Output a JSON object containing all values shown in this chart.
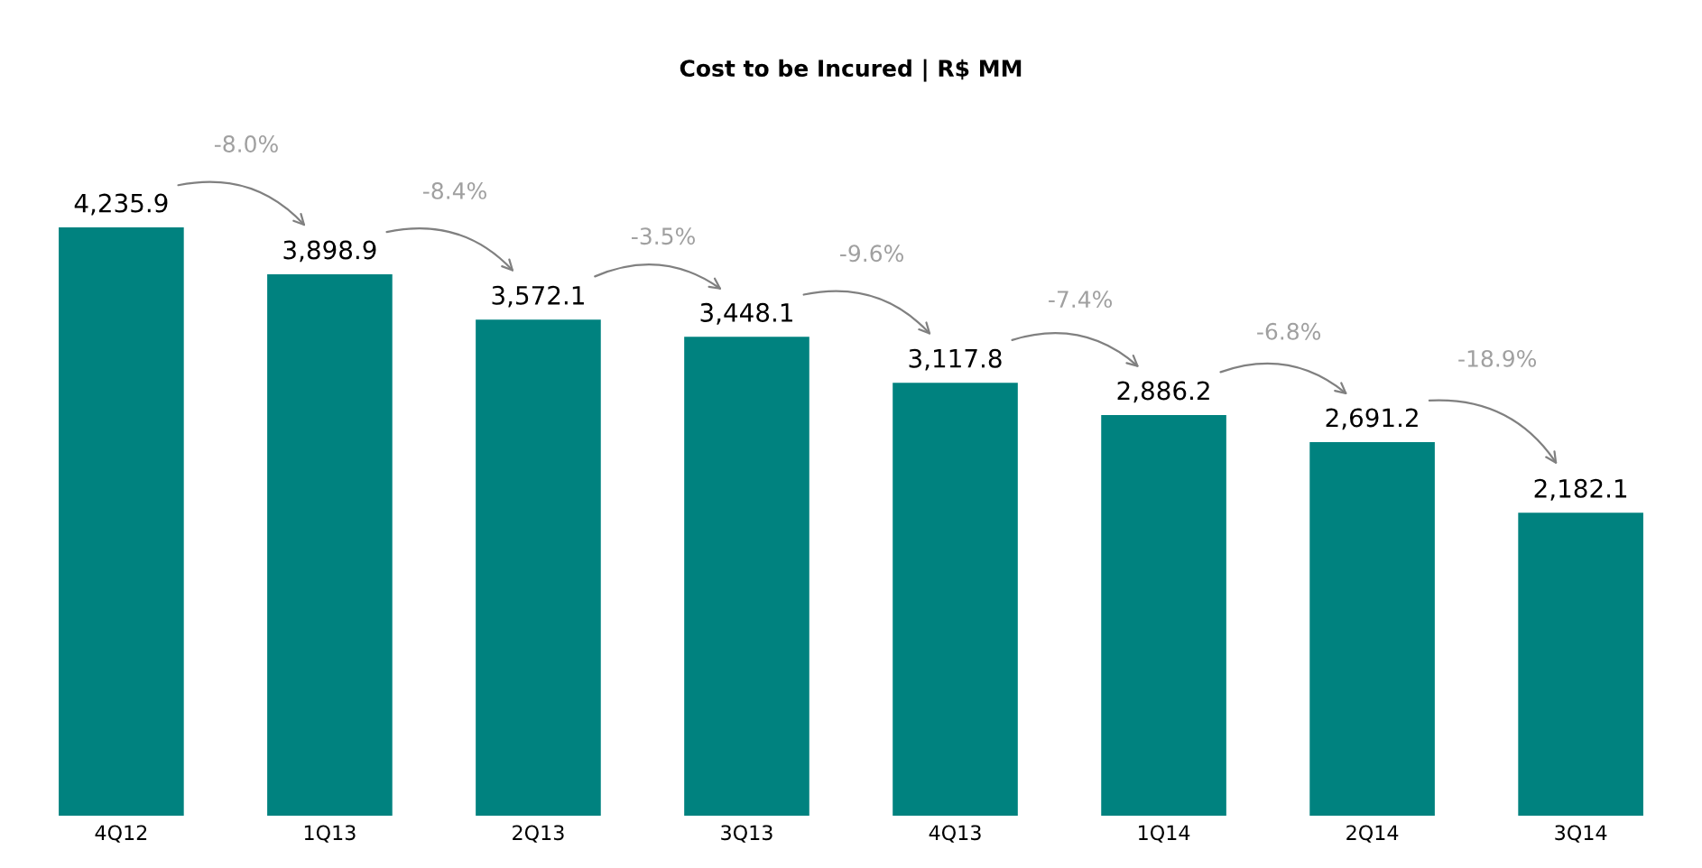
{
  "chart_data": {
    "type": "bar",
    "title": "Cost to be Incured | R$ MM",
    "categories": [
      "4Q12",
      "1Q13",
      "2Q13",
      "3Q13",
      "4Q13",
      "1Q14",
      "2Q14",
      "3Q14"
    ],
    "values": [
      4235.9,
      3898.9,
      3572.1,
      3448.1,
      3117.8,
      2886.2,
      2691.2,
      2182.1
    ],
    "color": "#00827f",
    "value_labels": [
      "4,235.9",
      "3,898.9",
      "3,572.1",
      "3,448.1",
      "3,117.8",
      "2,886.2",
      "2,691.2",
      "2,182.1"
    ],
    "annotations": [
      "-8.0%",
      "-8.4%",
      "-3.5%",
      "-9.6%",
      "-7.4%",
      "-6.8%",
      "-18.9%"
    ]
  }
}
